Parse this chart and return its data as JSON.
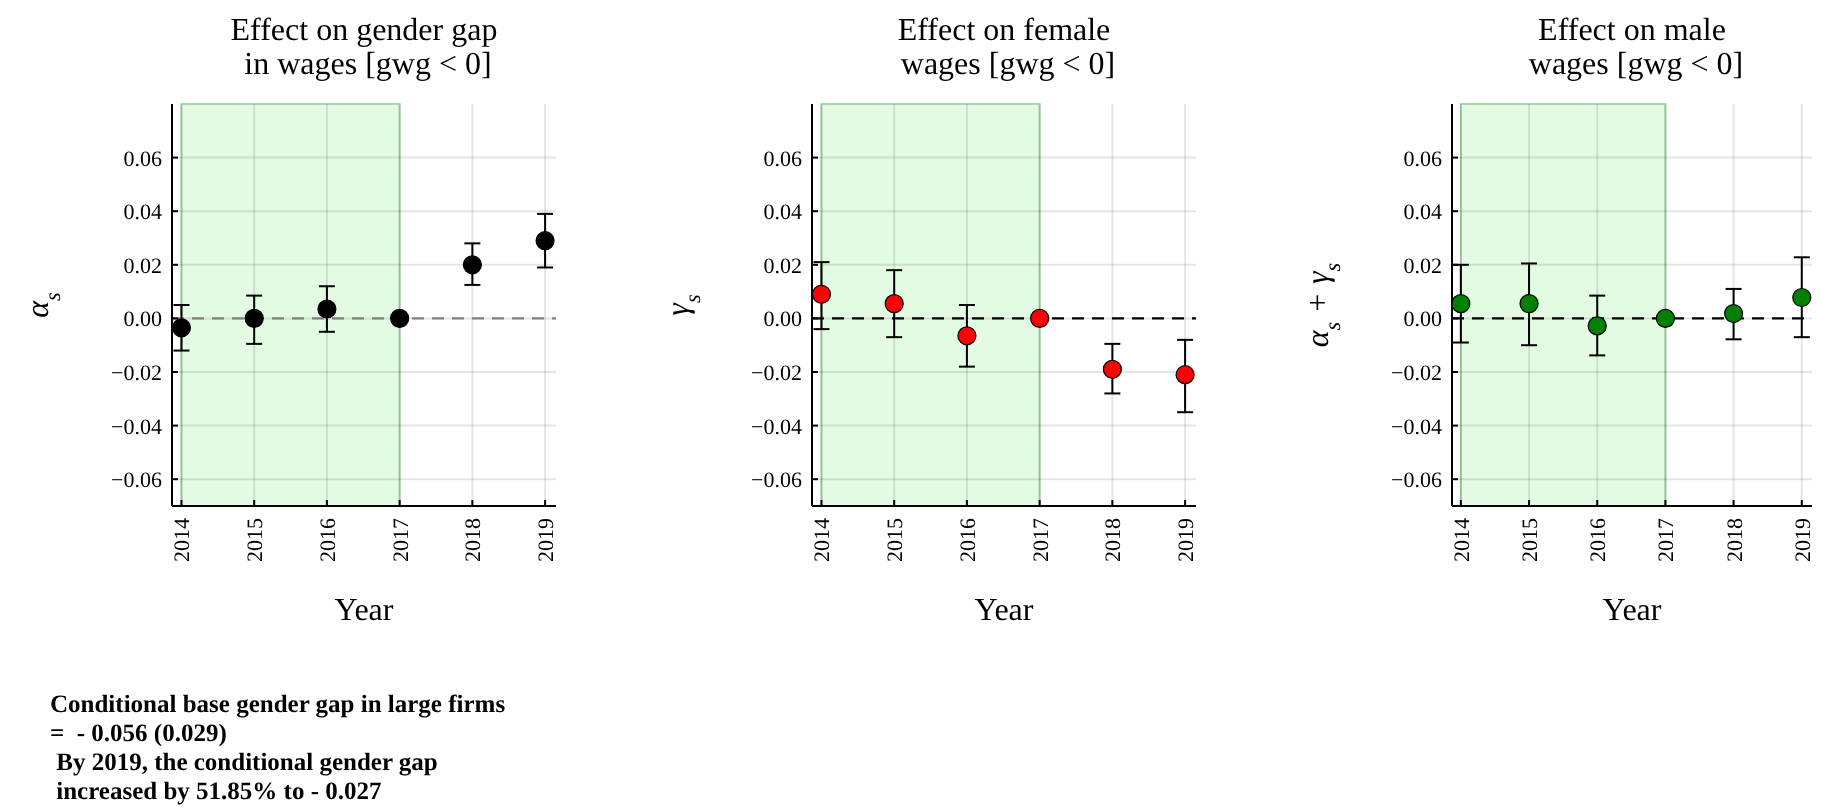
{
  "chart_data": [
    {
      "type": "scatter",
      "title": "Effect on gender gap\n in wages [gwg < 0]",
      "xlabel": "Year",
      "ylabel": "α$_{s}$",
      "xlim": [
        2013.87,
        2019.15
      ],
      "ylim": [
        -0.07,
        0.08
      ],
      "xticks": [
        2014,
        2015,
        2016,
        2017,
        2018,
        2019
      ],
      "yticks": [
        {
          "value": -0.06,
          "label": "−0.06"
        },
        {
          "value": -0.04,
          "label": "−0.04"
        },
        {
          "value": -0.02,
          "label": "−0.02"
        },
        {
          "value": 0,
          "label": "0.00"
        },
        {
          "value": 0.02,
          "label": "0.02"
        },
        {
          "value": 0.04,
          "label": "0.04"
        },
        {
          "value": 0.06,
          "label": "0.06"
        }
      ],
      "grid": true,
      "marker": "circle",
      "x": [
        2014,
        2015,
        2016,
        2017,
        2018,
        2019
      ],
      "series": [
        {
          "color": "#000000",
          "values": [
            -0.0035,
            0,
            0.0035,
            0,
            0.02,
            0.029
          ],
          "errors": [
            [
              -0.012,
              0.005
            ],
            [
              -0.0095,
              0.0085
            ],
            [
              -0.005,
              0.012
            ],
            null,
            [
              0.0125,
              0.028
            ],
            [
              0.019,
              0.039
            ]
          ]
        }
      ],
      "bands": [
        {
          "axis": "x",
          "from": 2014,
          "to": 2017,
          "color": "#e3fae3"
        }
      ],
      "ref_lines": [
        {
          "axis": "y",
          "value": 0,
          "color": "#808080",
          "line_style": "dashed"
        }
      ],
      "annotations": [
        "Conditional base gender gap in large firms\n=  - 0.056 (0.029)\n By 2019, the conditional gender gap\n increased by 51.85% to - 0.027"
      ]
    },
    {
      "type": "scatter",
      "title": "Effect on female\n wages [gwg < 0]",
      "xlabel": "Year",
      "ylabel": "γ$_{s}$",
      "xlim": [
        2013.87,
        2019.15
      ],
      "ylim": [
        -0.07,
        0.08
      ],
      "xticks": [
        2014,
        2015,
        2016,
        2017,
        2018,
        2019
      ],
      "yticks": [
        {
          "value": -0.06,
          "label": "−0.06"
        },
        {
          "value": -0.04,
          "label": "−0.04"
        },
        {
          "value": -0.02,
          "label": "−0.02"
        },
        {
          "value": 0,
          "label": "0.00"
        },
        {
          "value": 0.02,
          "label": "0.02"
        },
        {
          "value": 0.04,
          "label": "0.04"
        },
        {
          "value": 0.06,
          "label": "0.06"
        }
      ],
      "grid": true,
      "marker": "circle",
      "x": [
        2014,
        2015,
        2016,
        2017,
        2018,
        2019
      ],
      "series": [
        {
          "color": "#ff0000",
          "values": [
            0.009,
            0.0055,
            -0.0065,
            0,
            -0.019,
            -0.021
          ],
          "errors": [
            [
              -0.004,
              0.021
            ],
            [
              -0.007,
              0.018
            ],
            [
              -0.018,
              0.005
            ],
            null,
            [
              -0.028,
              -0.0095
            ],
            [
              -0.035,
              -0.008
            ]
          ]
        }
      ],
      "bands": [
        {
          "axis": "x",
          "from": 2014,
          "to": 2017,
          "color": "#e3fae3"
        }
      ],
      "ref_lines": [
        {
          "axis": "y",
          "value": 0,
          "color": "#000000",
          "line_style": "dashed"
        }
      ]
    },
    {
      "type": "scatter",
      "title": "Effect on male\n wages [gwg < 0]",
      "xlabel": "Year",
      "ylabel": "α$_{s}$ + γ$_{s}$",
      "xlim": [
        2013.87,
        2019.15
      ],
      "ylim": [
        -0.07,
        0.08
      ],
      "xticks": [
        2014,
        2015,
        2016,
        2017,
        2018,
        2019
      ],
      "yticks": [
        {
          "value": -0.06,
          "label": "−0.06"
        },
        {
          "value": -0.04,
          "label": "−0.04"
        },
        {
          "value": -0.02,
          "label": "−0.02"
        },
        {
          "value": 0,
          "label": "0.00"
        },
        {
          "value": 0.02,
          "label": "0.02"
        },
        {
          "value": 0.04,
          "label": "0.04"
        },
        {
          "value": 0.06,
          "label": "0.06"
        }
      ],
      "grid": true,
      "marker": "circle",
      "x": [
        2014,
        2015,
        2016,
        2017,
        2018,
        2019
      ],
      "series": [
        {
          "color": "#008000",
          "values": [
            0.0055,
            0.0055,
            -0.0028,
            0,
            0.0018,
            0.0078
          ],
          "errors": [
            [
              -0.009,
              0.02
            ],
            [
              -0.01,
              0.0205
            ],
            [
              -0.0138,
              0.0085
            ],
            null,
            [
              -0.0078,
              0.011
            ],
            [
              -0.007,
              0.0228
            ]
          ]
        }
      ],
      "bands": [
        {
          "axis": "x",
          "from": 2014,
          "to": 2017,
          "color": "#e3fae3"
        }
      ],
      "ref_lines": [
        {
          "axis": "y",
          "value": 0,
          "color": "#000000",
          "line_style": "dashed"
        }
      ]
    }
  ]
}
